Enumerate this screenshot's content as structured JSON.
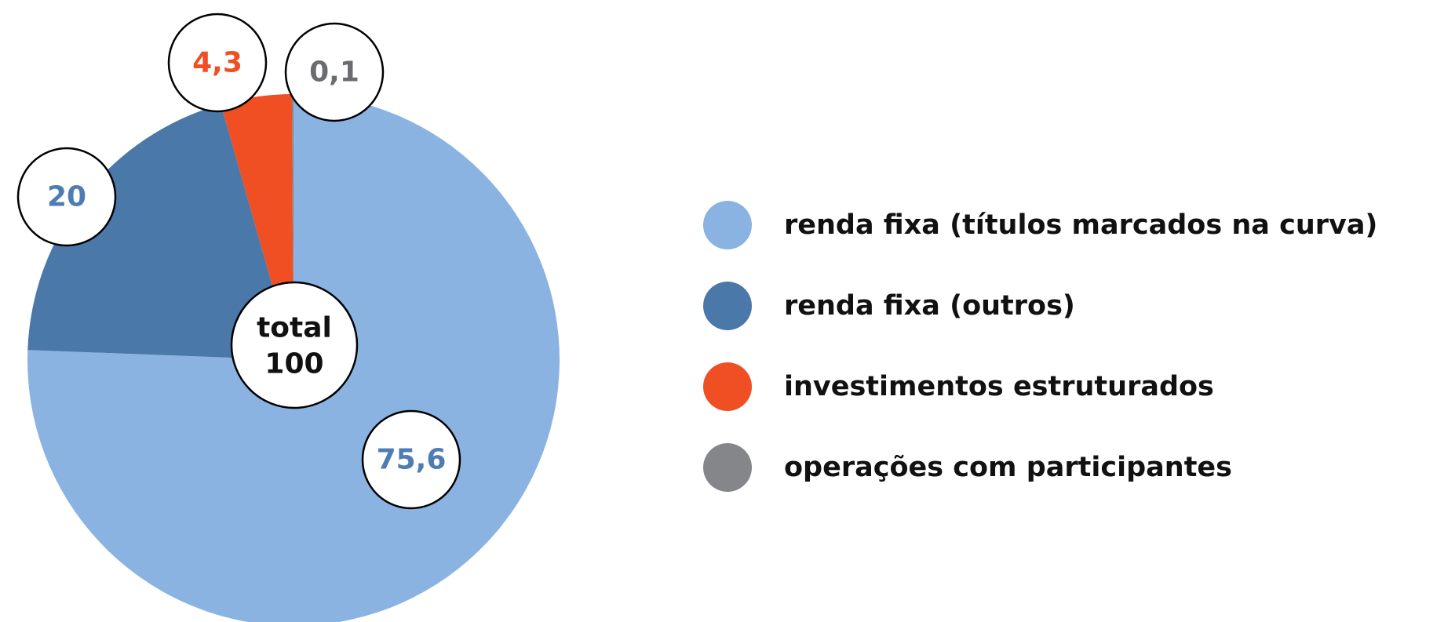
{
  "chart_data": {
    "type": "pie",
    "categories": [
      "renda fixa (títulos marcados na curva)",
      "renda fixa (outros)",
      "investimentos estruturados",
      "operações com participantes"
    ],
    "values": [
      75.6,
      20,
      4.3,
      0.1
    ],
    "value_labels": [
      "75,6",
      "20",
      "4,3",
      "0,1"
    ],
    "colors": [
      "#8ab3e1",
      "#4a78a8",
      "#f04e23",
      "#85868a"
    ],
    "label_colors": [
      "#4f7db3",
      "#4f7db3",
      "#f04e23",
      "#6b6c70"
    ],
    "total_label": "total",
    "total": 100
  }
}
